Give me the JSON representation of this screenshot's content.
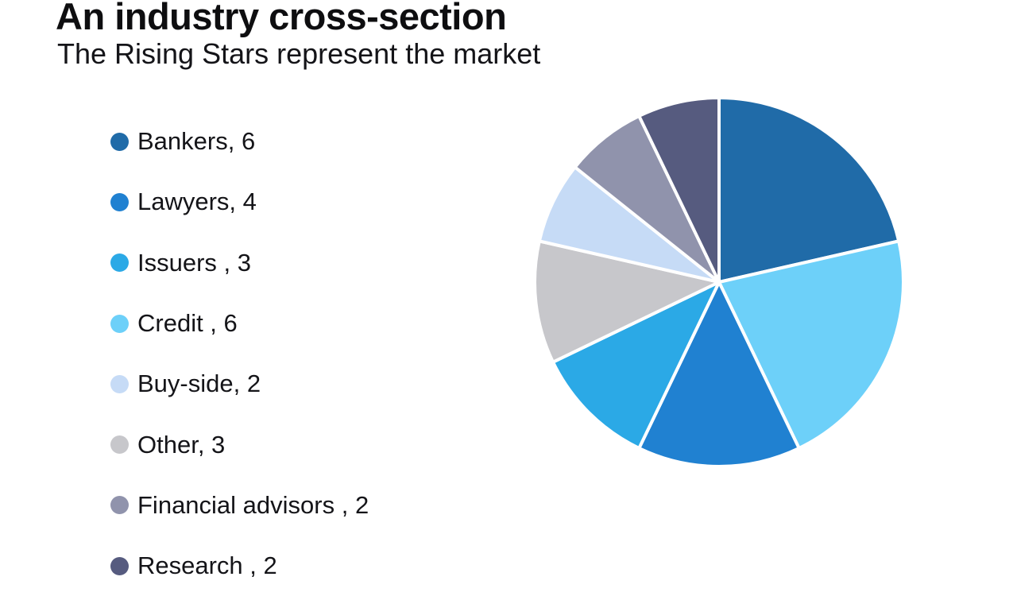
{
  "chart_data": {
    "type": "pie",
    "title": "An industry cross-section",
    "subtitle": "The Rising Stars represent the market",
    "categories": [
      "Bankers",
      "Lawyers",
      "Issuers",
      "Credit",
      "Buy-side",
      "Other",
      "Financial advisors",
      "Research"
    ],
    "values": [
      6,
      4,
      3,
      6,
      2,
      3,
      2,
      2
    ],
    "total": 28,
    "legend_labels": [
      "Bankers, 6",
      "Lawyers, 4",
      "Issuers , 3",
      "Credit , 6",
      "Buy-side, 2",
      "Other, 3",
      "Financial advisors , 2",
      "Research , 2"
    ],
    "colors": [
      "#206BA8",
      "#2081D1",
      "#2BA9E6",
      "#6DD0F9",
      "#C6DBF6",
      "#C7C7CB",
      "#9093AC",
      "#565B7F"
    ],
    "slice_order": [
      "Bankers",
      "Credit",
      "Lawyers",
      "Issuers",
      "Other",
      "Buy-side",
      "Financial advisors",
      "Research"
    ],
    "start_angle_deg": 0,
    "direction": "clockwise",
    "legend_position": "left",
    "slice_separator_color": "#ffffff",
    "background_color": "#ffffff"
  }
}
